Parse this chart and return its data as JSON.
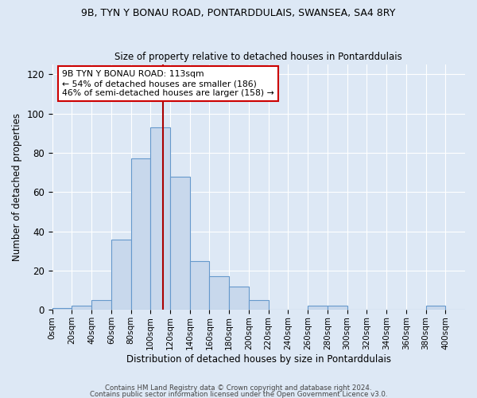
{
  "title1": "9B, TYN Y BONAU ROAD, PONTARDDULAIS, SWANSEA, SA4 8RY",
  "title2": "Size of property relative to detached houses in Pontarddulais",
  "xlabel": "Distribution of detached houses by size in Pontarddulais",
  "ylabel": "Number of detached properties",
  "bar_values": [
    1,
    2,
    5,
    36,
    77,
    93,
    68,
    25,
    17,
    12,
    5,
    0,
    0,
    2,
    2,
    0,
    0,
    0,
    0,
    2,
    0
  ],
  "bin_edges": [
    0,
    20,
    40,
    60,
    80,
    100,
    120,
    140,
    160,
    180,
    200,
    220,
    240,
    260,
    280,
    300,
    320,
    340,
    360,
    380,
    400
  ],
  "bar_color": "#c8d8ec",
  "bar_edge_color": "#6699cc",
  "property_sqm": 113,
  "vline_color": "#aa0000",
  "annotation_line1": "9B TYN Y BONAU ROAD: 113sqm",
  "annotation_line2": "← 54% of detached houses are smaller (186)",
  "annotation_line3": "46% of semi-detached houses are larger (158) →",
  "annotation_box_color": "#ffffff",
  "annotation_box_edge": "#cc0000",
  "ylim": [
    0,
    125
  ],
  "yticks": [
    0,
    20,
    40,
    60,
    80,
    100,
    120
  ],
  "background_color": "#dde8f5",
  "plot_bg_color": "#dde8f5",
  "footer1": "Contains HM Land Registry data © Crown copyright and database right 2024.",
  "footer2": "Contains public sector information licensed under the Open Government Licence v3.0.",
  "tick_labels": [
    "0sqm",
    "20sqm",
    "40sqm",
    "60sqm",
    "80sqm",
    "100sqm",
    "120sqm",
    "140sqm",
    "160sqm",
    "180sqm",
    "200sqm",
    "220sqm",
    "240sqm",
    "260sqm",
    "280sqm",
    "300sqm",
    "320sqm",
    "340sqm",
    "360sqm",
    "380sqm",
    "400sqm"
  ]
}
